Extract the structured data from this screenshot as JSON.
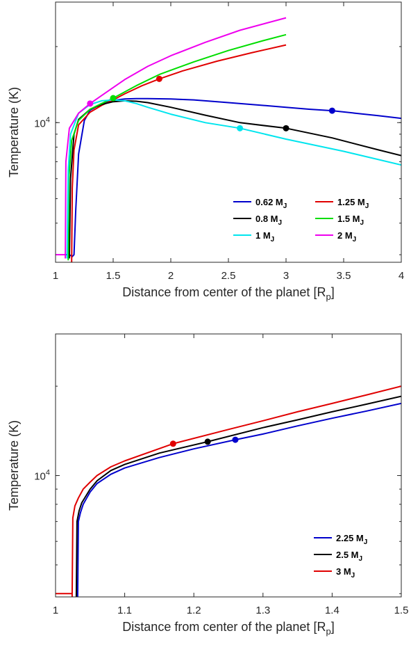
{
  "chart_data": [
    {
      "type": "line",
      "xlabel": "Distance from center of the planet [R",
      "xlabel_sub": "p",
      "xlabel_end": "]",
      "ylabel": "Temperature (K)",
      "xlim": [
        1,
        4
      ],
      "ylim": [
        2800,
        30000
      ],
      "yscale": "log",
      "grid": false,
      "legend_position": "bottom-right",
      "xticks": [
        "1",
        "1.5",
        "2",
        "2.5",
        "3",
        "3.5",
        "4"
      ],
      "yticks": [
        {
          "value": 10000,
          "base": "10",
          "exp": "4"
        }
      ],
      "legend_columns": 2,
      "series": [
        {
          "name": "0.62 M",
          "sub": "J",
          "color": "#0000cc",
          "x": [
            1.08,
            1.12,
            1.145,
            1.16,
            1.175,
            1.2,
            1.25,
            1.3,
            1.4,
            1.5,
            1.6,
            1.7,
            1.8,
            2.0,
            2.2,
            2.5,
            2.8,
            3.0,
            3.2,
            3.4,
            3.6,
            3.8,
            4.0
          ],
          "y": [
            3000,
            3000,
            2950,
            3000,
            4500,
            7500,
            10200,
            11200,
            11900,
            12250,
            12400,
            12450,
            12450,
            12400,
            12300,
            12000,
            11700,
            11500,
            11300,
            11150,
            10900,
            10650,
            10400
          ],
          "marker": {
            "x": 3.4,
            "y": 11150
          }
        },
        {
          "name": "1.25 M",
          "sub": "J",
          "color": "#e00000",
          "x": [
            1.14,
            1.145,
            1.16,
            1.2,
            1.3,
            1.4,
            1.5,
            1.6,
            1.75,
            1.9,
            2.1,
            2.4,
            2.7,
            3.0
          ],
          "y": [
            2800,
            5500,
            7800,
            9800,
            11000,
            11700,
            12300,
            13000,
            14000,
            14900,
            16000,
            17500,
            18900,
            20300
          ],
          "marker": {
            "x": 1.9,
            "y": 14900
          }
        },
        {
          "name": "0.8 M",
          "sub": "J",
          "color": "#000000",
          "x": [
            1.12,
            1.13,
            1.16,
            1.2,
            1.3,
            1.4,
            1.5,
            1.6,
            1.7,
            1.8,
            2.0,
            2.3,
            2.6,
            3.0,
            3.4,
            3.8,
            4.0
          ],
          "y": [
            2900,
            6000,
            9000,
            10300,
            11300,
            11800,
            12100,
            12200,
            12150,
            12000,
            11500,
            10700,
            10000,
            9500,
            8700,
            7800,
            7400
          ],
          "marker": {
            "x": 3.0,
            "y": 9500
          }
        },
        {
          "name": "1.5 M",
          "sub": "J",
          "color": "#00dd00",
          "x": [
            1.11,
            1.115,
            1.14,
            1.2,
            1.3,
            1.4,
            1.5,
            1.7,
            1.9,
            2.2,
            2.5,
            2.8,
            3.0
          ],
          "y": [
            2850,
            6000,
            8500,
            10200,
            11300,
            11900,
            12500,
            14000,
            15500,
            17400,
            19300,
            21100,
            22300
          ],
          "marker": {
            "x": 1.5,
            "y": 12500
          }
        },
        {
          "name": "1 M",
          "sub": "J",
          "color": "#00e5ee",
          "x": [
            1.1,
            1.11,
            1.13,
            1.2,
            1.3,
            1.4,
            1.5,
            1.6,
            1.7,
            1.8,
            2.0,
            2.3,
            2.6,
            3.0,
            3.5,
            4.0
          ],
          "y": [
            2900,
            6500,
            9000,
            10900,
            11800,
            12200,
            12300,
            12200,
            11900,
            11500,
            10800,
            10000,
            9500,
            8600,
            7700,
            6800
          ],
          "marker": {
            "x": 2.6,
            "y": 9500
          }
        },
        {
          "name": "2 M",
          "sub": "J",
          "color": "#ee00ee",
          "x": [
            1.085,
            1.09,
            1.12,
            1.2,
            1.3,
            1.4,
            1.6,
            1.8,
            2.0,
            2.3,
            2.6,
            3.0
          ],
          "y": [
            2900,
            7000,
            9500,
            10900,
            11900,
            12800,
            14800,
            16700,
            18400,
            20800,
            23200,
            26000
          ],
          "marker": {
            "x": 1.3,
            "y": 11900
          }
        }
      ],
      "extra_lines": [
        {
          "color": "#ee00ee",
          "x": [
            1.0,
            1.085
          ],
          "y": [
            3000,
            3000
          ]
        }
      ]
    },
    {
      "type": "line",
      "xlabel": "Distance from center of the planet [R",
      "xlabel_sub": "p",
      "xlabel_end": "]",
      "ylabel": "Temperature (K)",
      "xlim": [
        1,
        1.5
      ],
      "ylim": [
        3900,
        30000
      ],
      "yscale": "log",
      "grid": false,
      "legend_position": "bottom-right",
      "xticks": [
        "1",
        "1.1",
        "1.2",
        "1.3",
        "1.4",
        "1.5"
      ],
      "yticks": [
        {
          "value": 10000,
          "base": "10",
          "exp": "4"
        }
      ],
      "legend_columns": 1,
      "series": [
        {
          "name": "2.25 M",
          "sub": "J",
          "color": "#0000cc",
          "x": [
            1.032,
            1.033,
            1.036,
            1.04,
            1.05,
            1.06,
            1.08,
            1.1,
            1.15,
            1.2,
            1.26,
            1.3,
            1.35,
            1.4,
            1.45,
            1.5
          ],
          "y": [
            3900,
            7000,
            7500,
            8000,
            8800,
            9400,
            10100,
            10600,
            11500,
            12300,
            13200,
            13800,
            14700,
            15600,
            16500,
            17500
          ],
          "marker": {
            "x": 1.26,
            "y": 13200
          }
        },
        {
          "name": "2.5 M",
          "sub": "J",
          "color": "#000000",
          "x": [
            1.03,
            1.031,
            1.034,
            1.038,
            1.05,
            1.06,
            1.08,
            1.1,
            1.15,
            1.22,
            1.3,
            1.35,
            1.4,
            1.45,
            1.5
          ],
          "y": [
            3900,
            7000,
            7600,
            8100,
            9000,
            9600,
            10400,
            10900,
            11900,
            13000,
            14500,
            15400,
            16400,
            17400,
            18500
          ],
          "marker": {
            "x": 1.22,
            "y": 13000
          }
        },
        {
          "name": "3 M",
          "sub": "J",
          "color": "#e00000",
          "x": [
            1.024,
            1.025,
            1.028,
            1.033,
            1.04,
            1.05,
            1.06,
            1.08,
            1.1,
            1.17,
            1.25,
            1.3,
            1.35,
            1.4,
            1.45,
            1.5
          ],
          "y": [
            3900,
            7200,
            7900,
            8400,
            9000,
            9500,
            10000,
            10700,
            11200,
            12800,
            14300,
            15300,
            16400,
            17500,
            18700,
            20000
          ],
          "marker": {
            "x": 1.17,
            "y": 12800
          }
        }
      ],
      "extra_lines": [
        {
          "color": "#e00000",
          "x": [
            1.0,
            1.024
          ],
          "y": [
            4000,
            4000
          ]
        }
      ]
    }
  ]
}
